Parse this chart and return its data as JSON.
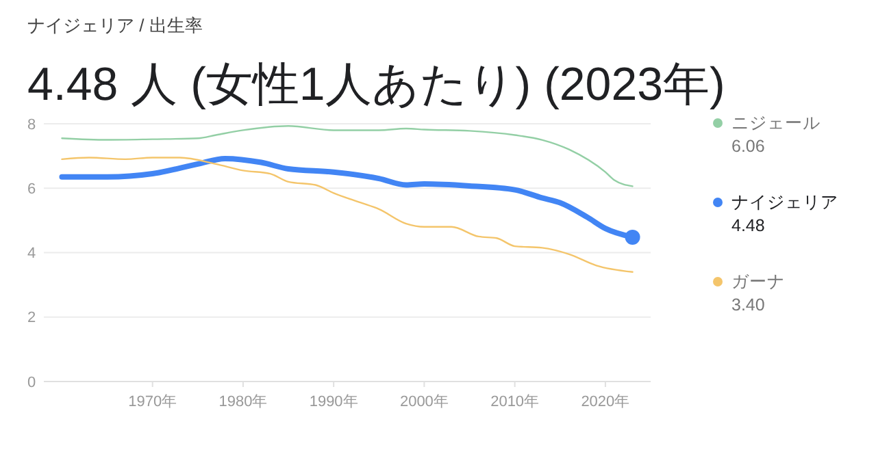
{
  "chart_data": {
    "type": "line",
    "subtitle": "ナイジェリア / 出生率",
    "title": "4.48 人 (女性1人あたり) (2023年)",
    "xlim": [
      1958,
      2025
    ],
    "xticks": [
      {
        "value": 1970,
        "label": "1970年"
      },
      {
        "value": 1980,
        "label": "1980年"
      },
      {
        "value": 1990,
        "label": "1990年"
      },
      {
        "value": 2000,
        "label": "2000年"
      },
      {
        "value": 2010,
        "label": "2010年"
      },
      {
        "value": 2020,
        "label": "2020年"
      }
    ],
    "ylim": [
      0,
      8
    ],
    "yticks": [
      0,
      2,
      4,
      6,
      8
    ],
    "grid": "y",
    "legend": "right",
    "annotations": [
      "6.06",
      "4.48",
      "3.40"
    ],
    "series": [
      {
        "name": "ニジェール",
        "color": "#93cfa5",
        "x": [
          1960,
          1965,
          1970,
          1975,
          1977,
          1980,
          1985,
          1990,
          1995,
          1998,
          2000,
          2005,
          2010,
          2013,
          2016,
          2020,
          2021,
          2023
        ],
        "values": [
          7.55,
          7.5,
          7.52,
          7.55,
          7.65,
          7.8,
          7.93,
          7.8,
          7.8,
          7.85,
          7.82,
          7.78,
          7.65,
          7.5,
          7.2,
          6.5,
          6.25,
          6.06
        ]
      },
      {
        "name": "ナイジェリア",
        "color": "#4285f4",
        "x": [
          1960,
          1965,
          1970,
          1975,
          1978,
          1982,
          1985,
          1990,
          1995,
          1998,
          2000,
          2005,
          2010,
          2013,
          2015,
          2018,
          2020,
          2023
        ],
        "values": [
          6.35,
          6.35,
          6.45,
          6.75,
          6.92,
          6.8,
          6.6,
          6.5,
          6.3,
          6.1,
          6.13,
          6.07,
          5.95,
          5.7,
          5.55,
          5.1,
          4.75,
          4.48
        ]
      },
      {
        "name": "ガーナ",
        "color": "#f4c56b",
        "x": [
          1960,
          1963,
          1967,
          1970,
          1973,
          1977,
          1980,
          1983,
          1985,
          1988,
          1990,
          1993,
          1995,
          1998,
          2000,
          2003,
          2006,
          2008,
          2010,
          2013,
          2016,
          2019,
          2023
        ],
        "values": [
          6.9,
          6.95,
          6.9,
          6.95,
          6.95,
          6.75,
          6.55,
          6.45,
          6.2,
          6.1,
          5.85,
          5.55,
          5.35,
          4.9,
          4.8,
          4.8,
          4.5,
          4.45,
          4.2,
          4.15,
          3.95,
          3.6,
          3.4
        ]
      },
      {
        "type": "scatter",
        "color": "#4285f4",
        "marker": "circle",
        "x": [
          2023
        ],
        "values": [
          4.48
        ]
      }
    ]
  }
}
